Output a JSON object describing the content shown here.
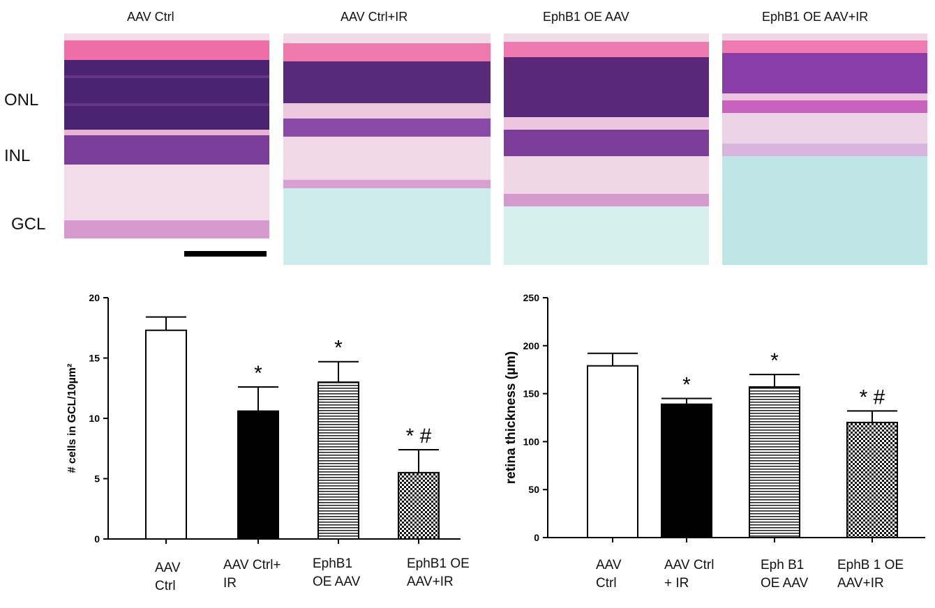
{
  "micrographs": {
    "panels": [
      {
        "title": "AAV Ctrl"
      },
      {
        "title": "AAV Ctrl+IR"
      },
      {
        "title": "EphB1 OE AAV"
      },
      {
        "title": "EphB1 OE AAV+IR"
      }
    ],
    "layer_labels": [
      "ONL",
      "INL",
      "GCL"
    ]
  },
  "chart_data": [
    {
      "type": "bar",
      "title": "",
      "xlabel": "",
      "ylabel": "# cells in GCL/10µm²",
      "ylim": [
        0,
        20
      ],
      "yticks": [
        0,
        5,
        10,
        15,
        20
      ],
      "categories": [
        "AAV\nCtrl",
        "AAV Ctrl+\nIR",
        "EphB1\nOE AAV",
        "EphB1 OE\nAAV+IR"
      ],
      "values": [
        17.3,
        10.6,
        13.0,
        5.5
      ],
      "errors": [
        1.1,
        2.0,
        1.7,
        1.9
      ],
      "patterns": [
        "white",
        "black",
        "horizontal-lines",
        "checker"
      ],
      "annotations": [
        "",
        "*",
        "*",
        "* #"
      ]
    },
    {
      "type": "bar",
      "title": "",
      "xlabel": "",
      "ylabel": "retina thickness (µm)",
      "ylim": [
        0,
        250
      ],
      "yticks": [
        0,
        50,
        100,
        150,
        200,
        250
      ],
      "categories": [
        "AAV\nCtrl",
        "AAV Ctrl\n+ IR",
        "Eph B1\nOE AAV",
        "EphB 1 OE\nAAV+IR"
      ],
      "values": [
        179,
        139,
        157,
        120
      ],
      "errors": [
        13,
        6,
        13,
        12
      ],
      "patterns": [
        "white",
        "black",
        "horizontal-lines",
        "checker"
      ],
      "annotations": [
        "",
        "*",
        "*",
        "* #"
      ]
    }
  ]
}
